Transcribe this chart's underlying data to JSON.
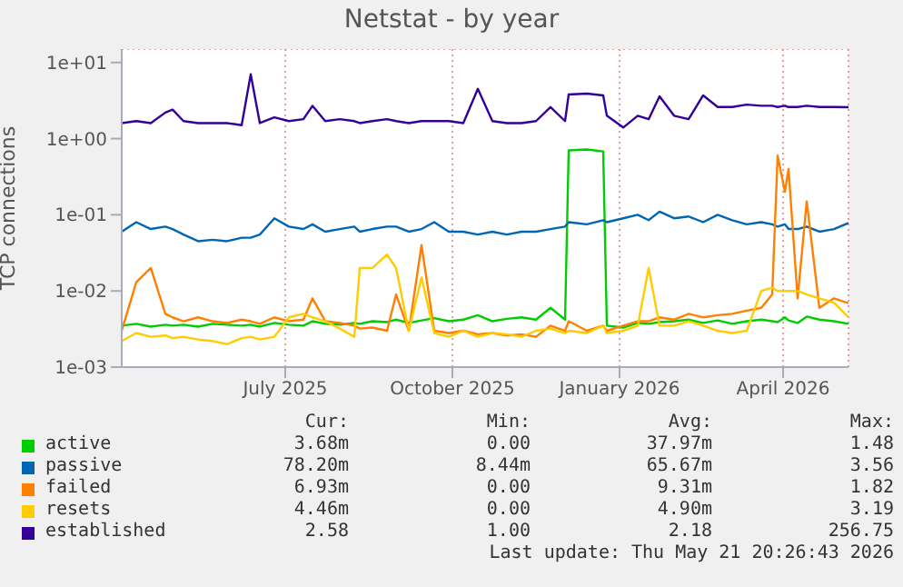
{
  "chart_data": {
    "type": "line",
    "title": "Netstat - by year",
    "ylabel": "TCP connections",
    "log": "y",
    "grid": true,
    "legend": "bottom",
    "marker": "none",
    "line_style": "solid",
    "xlim": [
      "2025-04-02",
      "2026-05-07"
    ],
    "xticks": [
      {
        "value": "2025-07-01",
        "label": "July 2025"
      },
      {
        "value": "2025-10-01",
        "label": "October 2025"
      },
      {
        "value": "2026-01-01",
        "label": "January 2026"
      },
      {
        "value": "2026-04-01",
        "label": "April 2026"
      }
    ],
    "ylim": [
      0.001,
      15
    ],
    "yticks": [
      {
        "value": 0.001,
        "label": "1e-03"
      },
      {
        "value": 0.01,
        "label": "1e-02"
      },
      {
        "value": 0.1,
        "label": "1e-01"
      },
      {
        "value": 1,
        "label": "1e+00"
      },
      {
        "value": 10,
        "label": "1e+01"
      }
    ],
    "x": [
      "2025-04-02",
      "2025-04-10",
      "2025-04-18",
      "2025-04-26",
      "2025-04-30",
      "2025-05-06",
      "2025-05-14",
      "2025-05-22",
      "2025-05-30",
      "2025-06-07",
      "2025-06-12",
      "2025-06-17",
      "2025-06-25",
      "2025-07-03",
      "2025-07-11",
      "2025-07-16",
      "2025-07-23",
      "2025-07-31",
      "2025-08-08",
      "2025-08-11",
      "2025-08-18",
      "2025-08-26",
      "2025-08-31",
      "2025-09-07",
      "2025-09-14",
      "2025-09-21",
      "2025-09-29",
      "2025-10-07",
      "2025-10-15",
      "2025-10-23",
      "2025-10-31",
      "2025-11-08",
      "2025-11-16",
      "2025-11-24",
      "2025-12-02",
      "2025-12-04",
      "2025-12-14",
      "2025-12-23",
      "2025-12-25",
      "2026-01-03",
      "2026-01-11",
      "2026-01-17",
      "2026-01-23",
      "2026-01-31",
      "2026-02-08",
      "2026-02-16",
      "2026-02-24",
      "2026-03-04",
      "2026-03-12",
      "2026-03-20",
      "2026-03-26",
      "2026-03-29",
      "2026-04-02",
      "2026-04-04",
      "2026-04-09",
      "2026-04-14",
      "2026-04-21",
      "2026-04-29",
      "2026-05-07"
    ],
    "series": [
      {
        "name": "active",
        "color": "#00cc00",
        "values": [
          0.0035,
          0.0037,
          0.0034,
          0.0036,
          0.0035,
          0.0036,
          0.0034,
          0.0037,
          0.0036,
          0.0035,
          0.0036,
          0.0034,
          0.0038,
          0.0036,
          0.0035,
          0.004,
          0.0037,
          0.0036,
          0.0038,
          0.0037,
          0.004,
          0.0039,
          0.0042,
          0.0038,
          0.0041,
          0.0044,
          0.004,
          0.0042,
          0.0048,
          0.004,
          0.0043,
          0.0045,
          0.0042,
          0.006,
          0.0042,
          0.7,
          0.72,
          0.68,
          0.0035,
          0.0033,
          0.0038,
          0.0037,
          0.0039,
          0.004,
          0.0042,
          0.0038,
          0.0041,
          0.0037,
          0.004,
          0.0042,
          0.004,
          0.0039,
          0.0045,
          0.0041,
          0.0038,
          0.0046,
          0.0042,
          0.004,
          0.0037
        ]
      },
      {
        "name": "passive",
        "color": "#0066b3",
        "values": [
          0.06,
          0.08,
          0.065,
          0.07,
          0.065,
          0.055,
          0.045,
          0.047,
          0.045,
          0.05,
          0.05,
          0.055,
          0.09,
          0.07,
          0.065,
          0.075,
          0.06,
          0.065,
          0.07,
          0.06,
          0.065,
          0.07,
          0.07,
          0.06,
          0.065,
          0.08,
          0.06,
          0.06,
          0.055,
          0.06,
          0.055,
          0.06,
          0.06,
          0.065,
          0.07,
          0.08,
          0.075,
          0.085,
          0.08,
          0.09,
          0.1,
          0.085,
          0.11,
          0.09,
          0.095,
          0.08,
          0.1,
          0.085,
          0.075,
          0.08,
          0.075,
          0.07,
          0.075,
          0.065,
          0.065,
          0.07,
          0.06,
          0.065,
          0.078
        ]
      },
      {
        "name": "failed",
        "color": "#ff8000",
        "values": [
          0.003,
          0.013,
          0.02,
          0.005,
          0.0045,
          0.004,
          0.0045,
          0.004,
          0.0038,
          0.0042,
          0.004,
          0.0037,
          0.0045,
          0.004,
          0.0042,
          0.008,
          0.004,
          0.0038,
          0.0035,
          0.0032,
          0.0033,
          0.003,
          0.009,
          0.003,
          0.04,
          0.003,
          0.0028,
          0.003,
          0.0027,
          0.0028,
          0.0026,
          0.0027,
          0.0025,
          0.0035,
          0.003,
          0.004,
          0.003,
          0.0035,
          0.003,
          0.0035,
          0.004,
          0.004,
          0.0045,
          0.0042,
          0.005,
          0.0045,
          0.0048,
          0.005,
          0.0055,
          0.006,
          0.009,
          0.6,
          0.2,
          0.4,
          0.008,
          0.15,
          0.006,
          0.008,
          0.0069
        ]
      },
      {
        "name": "resets",
        "color": "#ffcc00",
        "values": [
          0.0022,
          0.0028,
          0.0025,
          0.0026,
          0.0024,
          0.0025,
          0.0023,
          0.0022,
          0.002,
          0.0024,
          0.0025,
          0.0023,
          0.0025,
          0.0045,
          0.005,
          0.0045,
          0.004,
          0.0032,
          0.0025,
          0.02,
          0.02,
          0.03,
          0.02,
          0.003,
          0.015,
          0.0028,
          0.0025,
          0.003,
          0.0025,
          0.0028,
          0.0027,
          0.0025,
          0.003,
          0.0032,
          0.0028,
          0.003,
          0.0028,
          0.0035,
          0.0028,
          0.003,
          0.0035,
          0.02,
          0.0035,
          0.0035,
          0.004,
          0.0035,
          0.003,
          0.0028,
          0.003,
          0.01,
          0.011,
          0.01,
          0.01,
          0.01,
          0.01,
          0.009,
          0.008,
          0.007,
          0.0045
        ]
      },
      {
        "name": "established",
        "color": "#330099",
        "values": [
          1.6,
          1.7,
          1.6,
          2.2,
          2.4,
          1.7,
          1.6,
          1.6,
          1.6,
          1.5,
          7,
          1.6,
          1.9,
          1.7,
          1.8,
          2.7,
          1.7,
          1.8,
          1.7,
          1.6,
          1.7,
          1.8,
          1.7,
          1.6,
          1.7,
          1.7,
          1.7,
          1.6,
          4.5,
          1.7,
          1.6,
          1.6,
          1.7,
          2.6,
          1.7,
          3.8,
          3.9,
          3.7,
          2,
          1.4,
          2,
          1.8,
          3.6,
          2,
          1.8,
          3.7,
          2.6,
          2.6,
          2.8,
          2.7,
          2.7,
          2.6,
          2.7,
          2.6,
          2.6,
          2.7,
          2.6,
          2.6,
          2.58
        ]
      }
    ],
    "annotations": [
      "Cur:",
      "Min:",
      "Avg:",
      "Max:",
      "3.68m",
      "0.00",
      "37.97m",
      "1.48",
      "78.20m",
      "8.44m",
      "65.67m",
      "3.56",
      "6.93m",
      "0.00",
      "9.31m",
      "1.82",
      "4.46m",
      "0.00",
      "4.90m",
      "3.19",
      "2.58",
      "1.00",
      "2.18",
      "256.75",
      "Last update: Thu May 21 20:26:43 2026"
    ]
  }
}
